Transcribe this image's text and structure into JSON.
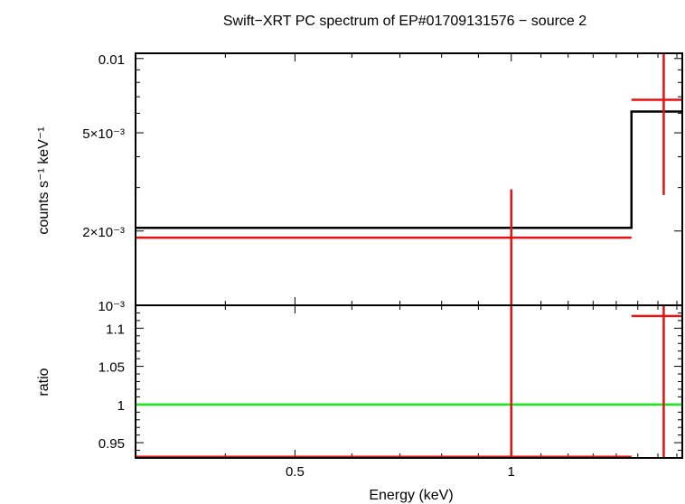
{
  "chart_data": [
    {
      "panel": "spectrum",
      "type": "line",
      "title": "Swift−XRT PC spectrum of EP#01709131576 − source 2",
      "xlabel": "Energy (keV)",
      "ylabel": "counts s⁻¹ keV⁻¹",
      "x_scale": "log",
      "y_scale": "log",
      "xlim": [
        0.3,
        1.73
      ],
      "ylim": [
        0.001,
        0.0105
      ],
      "y_ticks": [
        {
          "value": 0.01,
          "label": "0.01"
        },
        {
          "value": 0.005,
          "label": "5×10⁻³"
        },
        {
          "value": 0.002,
          "label": "2×10⁻³"
        },
        {
          "value": 0.001,
          "label": "10⁻³"
        }
      ],
      "data_points": [
        {
          "x": 1.0,
          "x_low": 0.3,
          "x_high": 1.47,
          "y": 0.00188,
          "y_low": 0.001,
          "y_high": 0.00295
        },
        {
          "x": 1.63,
          "x_low": 1.47,
          "x_high": 1.73,
          "y": 0.0068,
          "y_low": 0.0028,
          "y_high": 0.0105
        }
      ],
      "model_steps": [
        {
          "x_low": 0.3,
          "x_high": 1.47,
          "y": 0.00206
        },
        {
          "x_low": 1.47,
          "x_high": 1.73,
          "y": 0.0061
        }
      ],
      "colors": {
        "data": "#e8100f",
        "model": "#000000"
      }
    },
    {
      "panel": "ratio",
      "type": "line",
      "xlabel": "Energy (keV)",
      "ylabel": "ratio",
      "x_scale": "log",
      "xlim": [
        0.3,
        1.73
      ],
      "ylim": [
        0.93,
        1.13
      ],
      "x_ticks": [
        {
          "value": 0.5,
          "label": "0.5"
        },
        {
          "value": 1,
          "label": "1"
        }
      ],
      "y_ticks": [
        {
          "value": 1.1,
          "label": "1.1"
        },
        {
          "value": 1.05,
          "label": "1.05"
        },
        {
          "value": 1.0,
          "label": "1"
        },
        {
          "value": 0.95,
          "label": "0.95"
        }
      ],
      "data_points": [
        {
          "x": 1.0,
          "x_low": 0.3,
          "x_high": 1.47,
          "y": 0.9315,
          "y_low": 0.93,
          "y_high": 1.13
        },
        {
          "x": 1.63,
          "x_low": 1.47,
          "x_high": 1.73,
          "y": 1.116,
          "y_low": 0.93,
          "y_high": 1.13
        }
      ],
      "reference_line": 1.0,
      "colors": {
        "data": "#e8100f",
        "reference": "#11ee11"
      }
    }
  ]
}
